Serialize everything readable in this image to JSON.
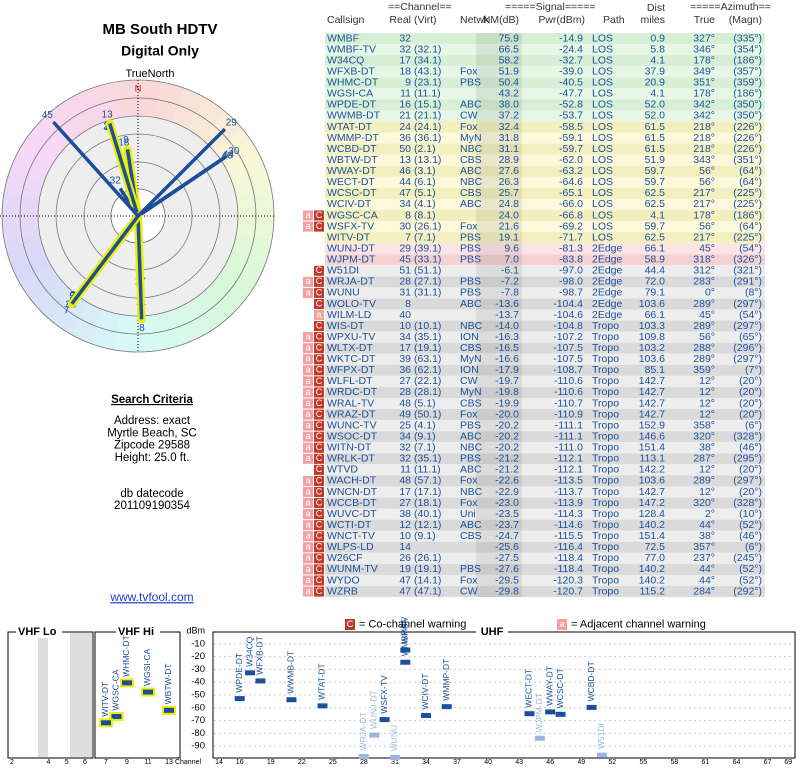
{
  "header": {
    "title": "MB South HDTV",
    "subtitle": "Digital Only",
    "north_label": "TrueNorth",
    "north_marker": "N"
  },
  "search": {
    "heading": "Search Criteria",
    "lines": [
      "Address: exact",
      "Myrtle Beach, SC",
      "Zipcode 29588",
      "Height: 25.0 ft."
    ],
    "datecode_label": "db datecode",
    "datecode": "201109190354",
    "link": "www.tvfool.com"
  },
  "table": {
    "group_headers": {
      "channel": "==Channel==",
      "signal": "=====Signal=====",
      "dist": "Dist",
      "azimuth": "=====Azimuth=="
    },
    "columns": [
      "Callsign",
      "Real",
      "(Virt)",
      "Netwk",
      "NM(dB)",
      "Pwr(dBm)",
      "Path",
      "miles",
      "True",
      "(Magn)"
    ],
    "rows": [
      {
        "callsign": "WMBF",
        "real": 32,
        "nm": "75.9",
        "pwr": "-14.9",
        "path": "LOS",
        "dist": "0.9",
        "true": "327°",
        "magn": "(335°)"
      },
      {
        "callsign": "WMBF-TV",
        "real": 32,
        "virt": "(32.1)",
        "nm": "66.5",
        "pwr": "-24.4",
        "path": "LOS",
        "dist": "5.8",
        "true": "346°",
        "magn": "(354°)"
      },
      {
        "callsign": "W34CQ",
        "real": 17,
        "virt": "(34.1)",
        "nm": "58.2",
        "pwr": "-32.7",
        "path": "LOS",
        "dist": "4.1",
        "true": "178°",
        "magn": "(186°)"
      },
      {
        "callsign": "WFXB-DT",
        "real": 18,
        "virt": "(43.1)",
        "netwk": "Fox",
        "nm": "51.9",
        "pwr": "-39.0",
        "path": "LOS",
        "dist": "37.9",
        "true": "349°",
        "magn": "(357°)"
      },
      {
        "callsign": "WHMC-DT",
        "real": 9,
        "virt": "(23.1)",
        "netwk": "PBS",
        "nm": "50.4",
        "pwr": "-40.5",
        "path": "LOS",
        "dist": "20.9",
        "true": "351°",
        "magn": "(359°)"
      },
      {
        "callsign": "WGSI-CA",
        "real": 11,
        "virt": "(11.1)",
        "nm": "43.2",
        "pwr": "-47.7",
        "path": "LOS",
        "dist": "4.1",
        "true": "178°",
        "magn": "(186°)"
      },
      {
        "callsign": "WPDE-DT",
        "real": 16,
        "virt": "(15.1)",
        "netwk": "ABC",
        "nm": "38.0",
        "pwr": "-52.8",
        "path": "LOS",
        "dist": "52.0",
        "true": "342°",
        "magn": "(350°)"
      },
      {
        "callsign": "WWMB-DT",
        "real": 21,
        "virt": "(21.1)",
        "netwk": "CW",
        "nm": "37.2",
        "pwr": "-53.7",
        "path": "LOS",
        "dist": "52.0",
        "true": "342°",
        "magn": "(350°)"
      },
      {
        "callsign": "WTAT-DT",
        "real": 24,
        "virt": "(24.1)",
        "netwk": "Fox",
        "nm": "32.4",
        "pwr": "-58.5",
        "path": "LOS",
        "dist": "61.5",
        "true": "218°",
        "magn": "(226°)"
      },
      {
        "callsign": "WMMP-DT",
        "real": 36,
        "virt": "(36.1)",
        "netwk": "MyN",
        "nm": "31.8",
        "pwr": "-59.1",
        "path": "LOS",
        "dist": "61.5",
        "true": "218°",
        "magn": "(226°)"
      },
      {
        "callsign": "WCBD-DT",
        "real": 50,
        "virt": "(2.1)",
        "netwk": "NBC",
        "nm": "31.1",
        "pwr": "-59.7",
        "path": "LOS",
        "dist": "61.5",
        "true": "218°",
        "magn": "(226°)"
      },
      {
        "callsign": "WBTW-DT",
        "real": 13,
        "virt": "(13.1)",
        "netwk": "CBS",
        "nm": "28.9",
        "pwr": "-62.0",
        "path": "LOS",
        "dist": "51.9",
        "true": "343°",
        "magn": "(351°)"
      },
      {
        "callsign": "WWAY-DT",
        "real": 46,
        "virt": "(3.1)",
        "netwk": "ABC",
        "nm": "27.6",
        "pwr": "-63.2",
        "path": "LOS",
        "dist": "59.7",
        "true": "56°",
        "magn": "(64°)"
      },
      {
        "callsign": "WECT-DT",
        "real": 44,
        "virt": "(6.1)",
        "netwk": "NBC",
        "nm": "26.3",
        "pwr": "-64.6",
        "path": "LOS",
        "dist": "59.7",
        "true": "56°",
        "magn": "(64°)"
      },
      {
        "callsign": "WCSC-DT",
        "real": 47,
        "virt": "(5.1)",
        "netwk": "CBS",
        "nm": "25.7",
        "pwr": "-65.1",
        "path": "LOS",
        "dist": "62.5",
        "true": "217°",
        "magn": "(225°)"
      },
      {
        "callsign": "WCIV-DT",
        "real": 34,
        "virt": "(4.1)",
        "netwk": "ABC",
        "nm": "24.8",
        "pwr": "-66.0",
        "path": "LOS",
        "dist": "62.5",
        "true": "217°",
        "magn": "(225°)"
      },
      {
        "callsign": "WGSC-CA",
        "real": 8,
        "virt": "(8.1)",
        "nm": "24.0",
        "pwr": "-66.8",
        "path": "LOS",
        "dist": "4.1",
        "true": "178°",
        "magn": "(186°)",
        "warn": [
          "a",
          "C"
        ]
      },
      {
        "callsign": "WSFX-TV",
        "real": 30,
        "virt": "(26.1)",
        "netwk": "Fox",
        "nm": "21.6",
        "pwr": "-69.2",
        "path": "LOS",
        "dist": "59.7",
        "true": "56°",
        "magn": "(64°)",
        "warn": [
          "a",
          "C"
        ]
      },
      {
        "callsign": "WITV-DT",
        "real": 7,
        "virt": "(7.1)",
        "netwk": "PBS",
        "nm": "19.1",
        "pwr": "-71.7",
        "path": "LOS",
        "dist": "62.5",
        "true": "217°",
        "magn": "(225°)"
      },
      {
        "callsign": "WUNJ-DT",
        "real": 29,
        "virt": "(39.1)",
        "netwk": "PBS",
        "nm": "9.6",
        "pwr": "-81.3",
        "path": "2Edge",
        "dist": "66.1",
        "true": "45°",
        "magn": "(54°)"
      },
      {
        "callsign": "WJPM-DT",
        "real": 45,
        "virt": "(33.1)",
        "netwk": "PBS",
        "nm": "7.0",
        "pwr": "-83.8",
        "path": "2Edge",
        "dist": "58.9",
        "true": "318°",
        "magn": "(326°)"
      },
      {
        "callsign": "W51DI",
        "real": 51,
        "virt": "(51.1)",
        "nm": "-6.1",
        "pwr": "-97.0",
        "path": "2Edge",
        "dist": "44.4",
        "true": "312°",
        "magn": "(321°)",
        "warn": [
          "C"
        ]
      },
      {
        "callsign": "WRJA-DT",
        "real": 28,
        "virt": "(27.1)",
        "netwk": "PBS",
        "nm": "-7.2",
        "pwr": "-98.0",
        "path": "2Edge",
        "dist": "72.0",
        "true": "283°",
        "magn": "(291°)",
        "warn": [
          "a",
          "C"
        ]
      },
      {
        "callsign": "WUNU",
        "real": 31,
        "virt": "(31.1)",
        "netwk": "PBS",
        "nm": "-7.8",
        "pwr": "-98.7",
        "path": "2Edge",
        "dist": "79.1",
        "true": "0°",
        "magn": "(8°)",
        "warn": [
          "a",
          "C"
        ]
      },
      {
        "callsign": "WOLO-TV",
        "real": 8,
        "netwk": "ABC",
        "nm": "-13.6",
        "pwr": "-104.4",
        "path": "2Edge",
        "dist": "103.6",
        "true": "289°",
        "magn": "(297°)",
        "warn": [
          "C"
        ]
      },
      {
        "callsign": "WILM-LD",
        "real": 40,
        "nm": "-13.7",
        "pwr": "-104.6",
        "path": "2Edge",
        "dist": "66.1",
        "true": "45°",
        "magn": "(54°)",
        "warn": [
          "a"
        ]
      },
      {
        "callsign": "WIS-DT",
        "real": 10,
        "virt": "(10.1)",
        "netwk": "NBC",
        "nm": "-14.0",
        "pwr": "-104.8",
        "path": "Tropo",
        "dist": "103.3",
        "true": "289°",
        "magn": "(297°)",
        "warn": [
          "C"
        ]
      },
      {
        "callsign": "WPXU-TV",
        "real": 34,
        "virt": "(35.1)",
        "netwk": "ION",
        "nm": "-16.3",
        "pwr": "-107.2",
        "path": "Tropo",
        "dist": "109.8",
        "true": "56°",
        "magn": "(65°)",
        "warn": [
          "a",
          "C"
        ]
      },
      {
        "callsign": "WLTX-DT",
        "real": 17,
        "virt": "(19.1)",
        "netwk": "CBS",
        "nm": "-16.5",
        "pwr": "-107.5",
        "path": "Tropo",
        "dist": "103.2",
        "true": "288°",
        "magn": "(296°)",
        "warn": [
          "a",
          "C"
        ]
      },
      {
        "callsign": "WKTC-DT",
        "real": 39,
        "virt": "(63.1)",
        "netwk": "MyN",
        "nm": "-16.6",
        "pwr": "-107.5",
        "path": "Tropo",
        "dist": "103.6",
        "true": "289°",
        "magn": "(297°)",
        "warn": [
          "a",
          "C"
        ]
      },
      {
        "callsign": "WFPX-DT",
        "real": 36,
        "virt": "(62.1)",
        "netwk": "ION",
        "nm": "-17.9",
        "pwr": "-108.7",
        "path": "Tropo",
        "dist": "85.1",
        "true": "359°",
        "magn": "(7°)",
        "warn": [
          "a",
          "C"
        ]
      },
      {
        "callsign": "WLFL-DT",
        "real": 27,
        "virt": "(22.1)",
        "netwk": "CW",
        "nm": "-19.7",
        "pwr": "-110.6",
        "path": "Tropo",
        "dist": "142.7",
        "true": "12°",
        "magn": "(20°)",
        "warn": [
          "a",
          "C"
        ]
      },
      {
        "callsign": "WRDC-DT",
        "real": 28,
        "virt": "(28.1)",
        "netwk": "MyN",
        "nm": "-19.8",
        "pwr": "-110.6",
        "path": "Tropo",
        "dist": "142.7",
        "true": "12°",
        "magn": "(20°)",
        "warn": [
          "a",
          "C"
        ]
      },
      {
        "callsign": "WRAL-TV",
        "real": 48,
        "virt": "(5.1)",
        "netwk": "CBS",
        "nm": "-19.9",
        "pwr": "-110.7",
        "path": "Tropo",
        "dist": "142.7",
        "true": "12°",
        "magn": "(20°)",
        "warn": [
          "a",
          "C"
        ]
      },
      {
        "callsign": "WRAZ-DT",
        "real": 49,
        "virt": "(50.1)",
        "netwk": "Fox",
        "nm": "-20.0",
        "pwr": "-110.9",
        "path": "Tropo",
        "dist": "142.7",
        "true": "12°",
        "magn": "(20°)",
        "warn": [
          "a",
          "C"
        ]
      },
      {
        "callsign": "WUNC-TV",
        "real": 25,
        "virt": "(4.1)",
        "netwk": "PBS",
        "nm": "-20.2",
        "pwr": "-111.1",
        "path": "Tropo",
        "dist": "152.9",
        "true": "358°",
        "magn": "(6°)",
        "warn": [
          "a",
          "C"
        ]
      },
      {
        "callsign": "WSOC-DT",
        "real": 34,
        "virt": "(9.1)",
        "netwk": "ABC",
        "nm": "-20.2",
        "pwr": "-111.1",
        "path": "Tropo",
        "dist": "146.6",
        "true": "320°",
        "magn": "(328°)",
        "warn": [
          "a",
          "C"
        ]
      },
      {
        "callsign": "WITN-DT",
        "real": 32,
        "virt": "(7.1)",
        "netwk": "NBC",
        "nm": "-20.2",
        "pwr": "-111.0",
        "path": "Tropo",
        "dist": "151.4",
        "true": "38°",
        "magn": "(46°)",
        "warn": [
          "a",
          "C"
        ]
      },
      {
        "callsign": "WRLK-DT",
        "real": 32,
        "virt": "(35.1)",
        "netwk": "PBS",
        "nm": "-21.2",
        "pwr": "-112.1",
        "path": "Tropo",
        "dist": "113.1",
        "true": "287°",
        "magn": "(295°)",
        "warn": [
          "a",
          "C"
        ]
      },
      {
        "callsign": "WTVD",
        "real": 11,
        "virt": "(11.1)",
        "netwk": "ABC",
        "nm": "-21.2",
        "pwr": "-112.1",
        "path": "Tropo",
        "dist": "142.2",
        "true": "12°",
        "magn": "(20°)",
        "warn": [
          "C"
        ]
      },
      {
        "callsign": "WACH-DT",
        "real": 48,
        "virt": "(57.1)",
        "netwk": "Fox",
        "nm": "-22.6",
        "pwr": "-113.5",
        "path": "Tropo",
        "dist": "103.6",
        "true": "289°",
        "magn": "(297°)",
        "warn": [
          "a",
          "C"
        ]
      },
      {
        "callsign": "WNCN-DT",
        "real": 17,
        "virt": "(17.1)",
        "netwk": "NBC",
        "nm": "-22.9",
        "pwr": "-113.7",
        "path": "Tropo",
        "dist": "142.7",
        "true": "12°",
        "magn": "(20°)",
        "warn": [
          "a",
          "C"
        ]
      },
      {
        "callsign": "WCCB-DT",
        "real": 27,
        "virt": "(18.1)",
        "netwk": "Fox",
        "nm": "-23.0",
        "pwr": "-113.9",
        "path": "Tropo",
        "dist": "147.2",
        "true": "320°",
        "magn": "(328°)",
        "warn": [
          "a",
          "C"
        ]
      },
      {
        "callsign": "WUVC-DT",
        "real": 38,
        "virt": "(40.1)",
        "netwk": "Uni",
        "nm": "-23.5",
        "pwr": "-114.3",
        "path": "Tropo",
        "dist": "128.4",
        "true": "2°",
        "magn": "(10°)",
        "warn": [
          "a",
          "C"
        ]
      },
      {
        "callsign": "WCTI-DT",
        "real": 12,
        "virt": "(12.1)",
        "netwk": "ABC",
        "nm": "-23.7",
        "pwr": "-114.6",
        "path": "Tropo",
        "dist": "140.2",
        "true": "44°",
        "magn": "(52°)",
        "warn": [
          "a",
          "C"
        ]
      },
      {
        "callsign": "WNCT-TV",
        "real": 10,
        "virt": "(9.1)",
        "netwk": "CBS",
        "nm": "-24.7",
        "pwr": "-115.5",
        "path": "Tropo",
        "dist": "151.4",
        "true": "38°",
        "magn": "(46°)",
        "warn": [
          "a",
          "C"
        ]
      },
      {
        "callsign": "WLPS-LD",
        "real": 14,
        "nm": "-25.6",
        "pwr": "-116.4",
        "path": "Tropo",
        "dist": "72.5",
        "true": "357°",
        "magn": "(6°)",
        "warn": [
          "a",
          "C"
        ]
      },
      {
        "callsign": "W26CF",
        "real": 26,
        "virt": "(26.1)",
        "nm": "-27.5",
        "pwr": "-118.4",
        "path": "Tropo",
        "dist": "77.0",
        "true": "237°",
        "magn": "(245°)",
        "warn": [
          "a",
          "C"
        ]
      },
      {
        "callsign": "WUNM-TV",
        "real": 19,
        "virt": "(19.1)",
        "netwk": "PBS",
        "nm": "-27.6",
        "pwr": "-118.4",
        "path": "Tropo",
        "dist": "140.2",
        "true": "44°",
        "magn": "(52°)",
        "warn": [
          "a",
          "C"
        ]
      },
      {
        "callsign": "WYDO",
        "real": 47,
        "virt": "(14.1)",
        "netwk": "Fox",
        "nm": "-29.5",
        "pwr": "-120.3",
        "path": "Tropo",
        "dist": "140.2",
        "true": "44°",
        "magn": "(52°)",
        "warn": [
          "a",
          "C"
        ]
      },
      {
        "callsign": "WZRB",
        "real": 47,
        "virt": "(47.1)",
        "netwk": "CW",
        "nm": "-29.8",
        "pwr": "-120.7",
        "path": "Tropo",
        "dist": "115.2",
        "true": "284°",
        "magn": "(292°)",
        "warn": [
          "a",
          "C"
        ]
      }
    ]
  },
  "spectrum": {
    "vhf_lo": "VHF Lo",
    "vhf_hi": "VHF Hi",
    "uhf": "UHF",
    "unit": "dBm",
    "channel_label": "Channel",
    "ylim": [
      -100,
      0
    ],
    "yticks": [
      -10,
      -20,
      -30,
      -40,
      -50,
      -60,
      -70,
      -80,
      -90
    ],
    "xticks_lo": [
      2,
      4,
      5,
      6
    ],
    "xticks_hi": [
      7,
      9,
      11,
      13
    ],
    "xticks_uhf": [
      14,
      16,
      19,
      22,
      25,
      28,
      31,
      34,
      37,
      40,
      43,
      46,
      49,
      52,
      55,
      58,
      61,
      64,
      67,
      69
    ],
    "legend": [
      {
        "mark": "C",
        "text": "= Co-channel warning"
      },
      {
        "mark": "a",
        "text": "= Adjacent channel warning"
      }
    ]
  }
}
